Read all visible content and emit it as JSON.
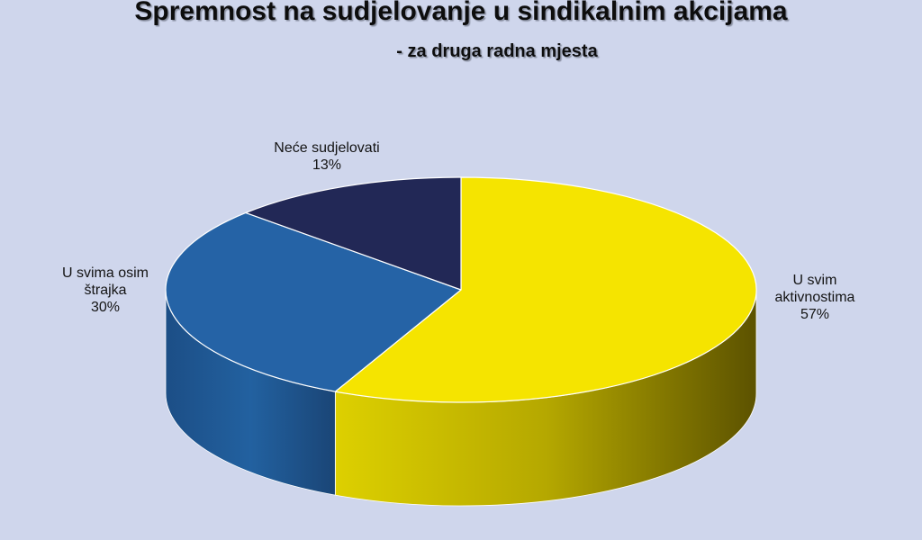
{
  "chart_data": {
    "type": "pie",
    "title": "Spremnost na sudjelovanje u sindikalnim akcijama",
    "subtitle": "- za druga radna mjesta",
    "slices": [
      {
        "label_lines": [
          "U svim",
          "aktivnostima"
        ],
        "value": 57,
        "value_label": "57%",
        "color": "#f5e400",
        "side_color": "#a69a00"
      },
      {
        "label_lines": [
          "U svima osim",
          "štrajka"
        ],
        "value": 30,
        "value_label": "30%",
        "color": "#2563a6",
        "side_color": "#1b4a80"
      },
      {
        "label_lines": [
          "Neće sudjelovati"
        ],
        "value": 13,
        "value_label": "13%",
        "color": "#222856",
        "side_color": "#171b3c"
      }
    ],
    "style": "3d-pie"
  },
  "colors": {
    "background": "#cfd6ec"
  }
}
